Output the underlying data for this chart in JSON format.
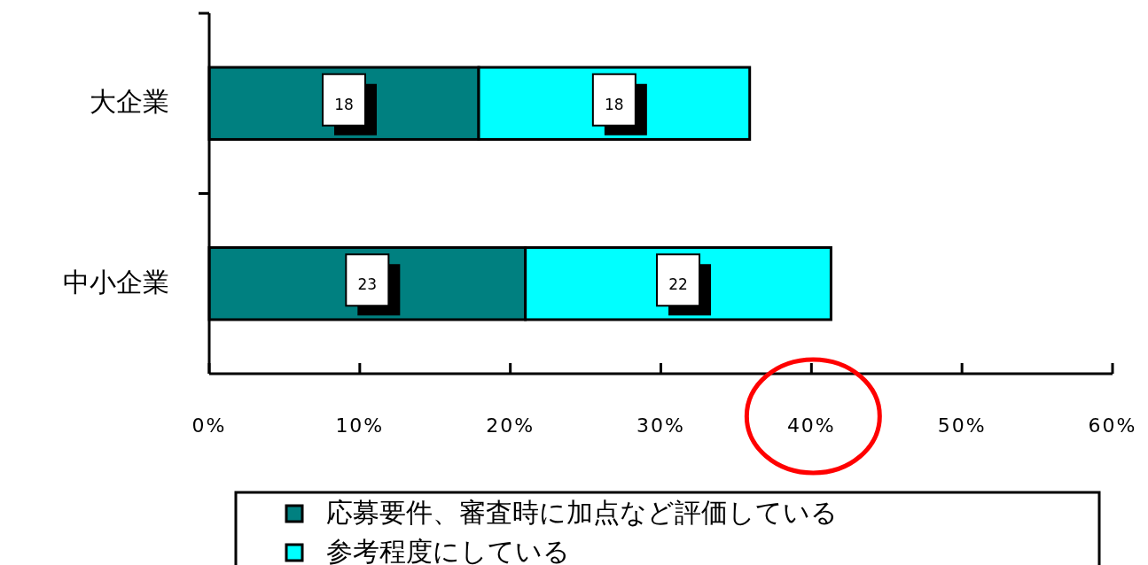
{
  "chart_data": {
    "type": "bar",
    "orientation": "horizontal",
    "stacked": true,
    "categories": [
      "大企業",
      "中小企業"
    ],
    "series": [
      {
        "name": "応募要件、審査時に加点など評価している",
        "color": "#008080",
        "values": [
          17.9,
          21.0
        ]
      },
      {
        "name": "参考程度にしている",
        "color": "#00ffff",
        "values": [
          18.0,
          20.3
        ]
      }
    ],
    "annotations": [
      "18",
      "18",
      "23",
      "22"
    ],
    "xlim": [
      0,
      60
    ],
    "xticks": [
      {
        "value": 0,
        "label": "0%"
      },
      {
        "value": 10,
        "label": "10%"
      },
      {
        "value": 20,
        "label": "20%"
      },
      {
        "value": 30,
        "label": "30%"
      },
      {
        "value": 40,
        "label": "40%"
      },
      {
        "value": 50,
        "label": "50%"
      },
      {
        "value": 60,
        "label": "60%"
      }
    ],
    "legend": "bottom"
  }
}
